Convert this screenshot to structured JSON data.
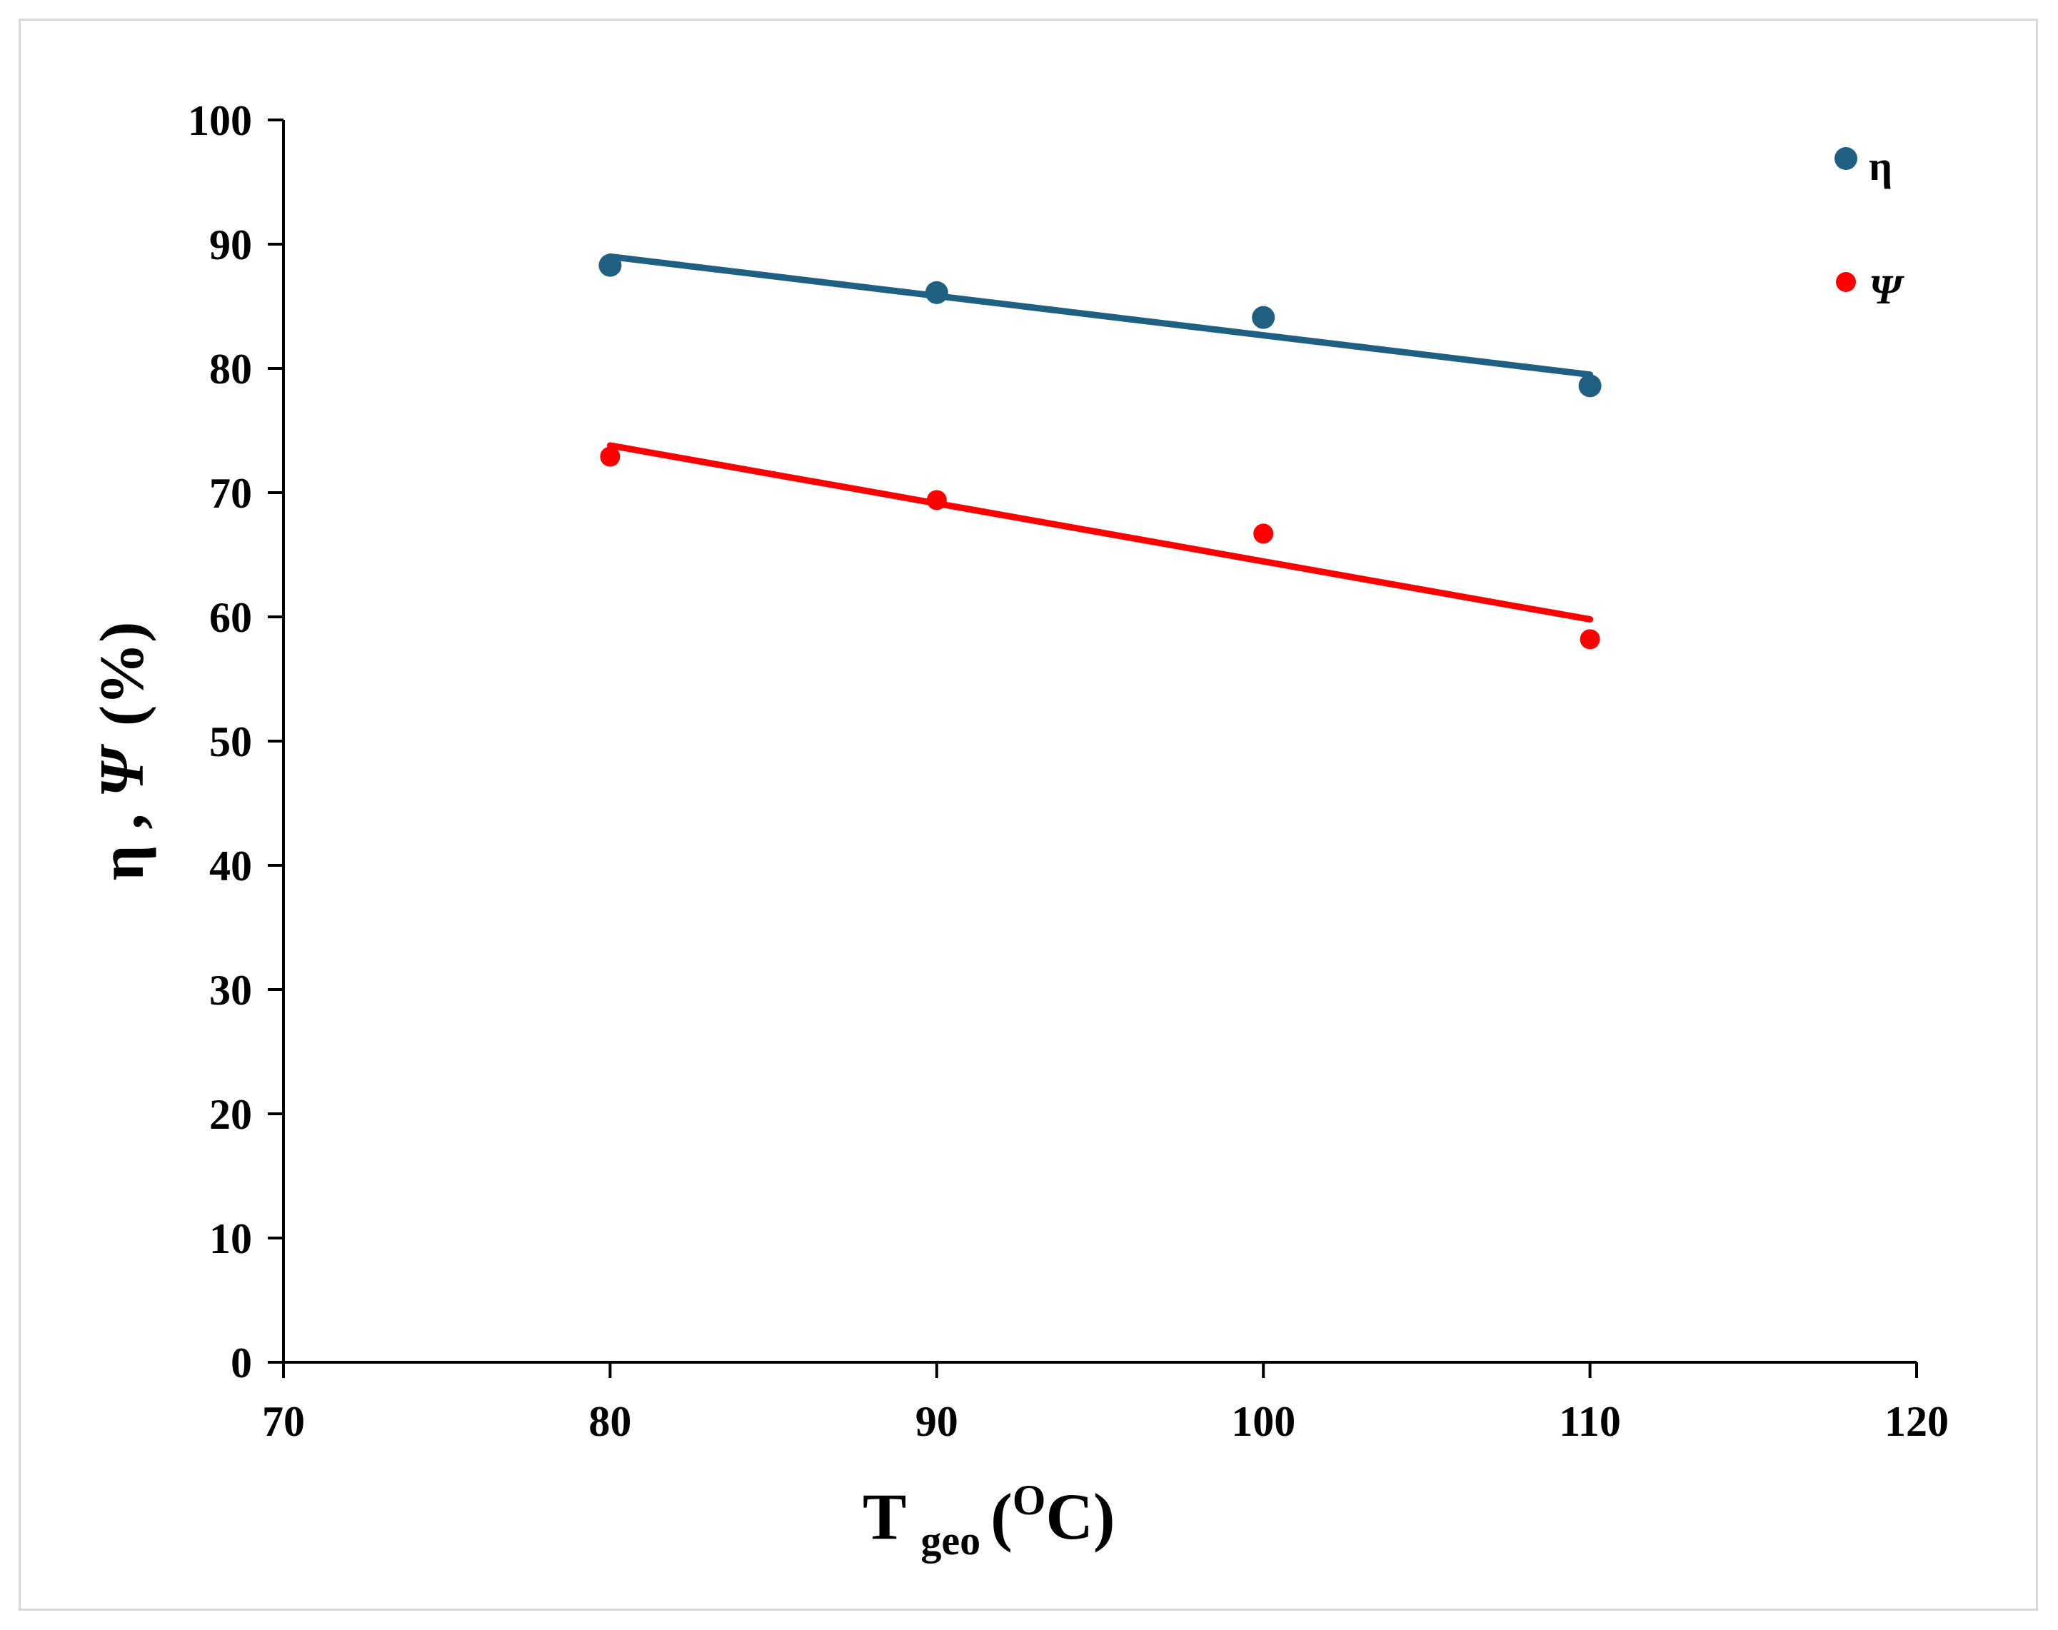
{
  "chart_data": {
    "type": "scatter",
    "title": "",
    "xlabel": "T geo (OC)",
    "xlabel_parts": {
      "main": "T",
      "sub": "geo",
      "open": "(",
      "sup": "O",
      "unit": "C)"
    },
    "ylabel": "η , Ψ (%)",
    "ylabel_parts": {
      "eta": "η",
      "sep": " , ",
      "psi": "Ψ",
      "unit": "(%)"
    },
    "xlim": [
      70,
      120
    ],
    "ylim": [
      0,
      100
    ],
    "x_ticks": [
      70,
      80,
      90,
      100,
      110,
      120
    ],
    "y_ticks": [
      0,
      10,
      20,
      30,
      40,
      50,
      60,
      70,
      80,
      90,
      100
    ],
    "grid": false,
    "legend_position": "top-right",
    "series": [
      {
        "name": "η",
        "color": "#1f5f82",
        "x": [
          80,
          90,
          100,
          110
        ],
        "y": [
          88.3,
          86.1,
          84.1,
          78.6
        ],
        "trendline": {
          "x": [
            80,
            110
          ],
          "y": [
            89.0,
            79.5
          ]
        }
      },
      {
        "name": "Ψ",
        "color": "#ff0000",
        "x": [
          80,
          90,
          100,
          110
        ],
        "y": [
          72.9,
          69.4,
          66.7,
          58.2
        ],
        "trendline": {
          "x": [
            80,
            110
          ],
          "y": [
            73.8,
            59.8
          ]
        }
      }
    ]
  }
}
